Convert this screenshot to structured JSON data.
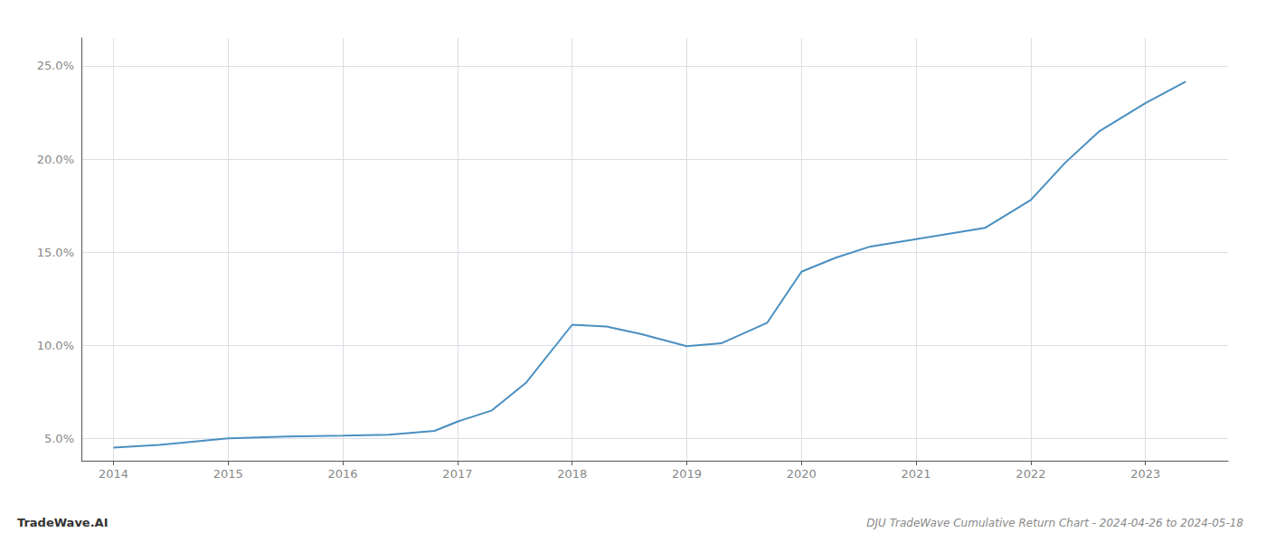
{
  "chart_data": {
    "type": "line",
    "title": "DJU TradeWave Cumulative Return Chart - 2024-04-26 to 2024-05-18",
    "annotations": [
      "TradeWave.AI"
    ],
    "x": [
      2014.0,
      2014.4,
      2015.0,
      2015.5,
      2016.0,
      2016.4,
      2016.8,
      2017.0,
      2017.3,
      2017.6,
      2018.0,
      2018.3,
      2018.6,
      2019.0,
      2019.3,
      2019.7,
      2020.0,
      2020.3,
      2020.6,
      2021.0,
      2021.3,
      2021.6,
      2022.0,
      2022.3,
      2022.6,
      2023.0,
      2023.35
    ],
    "values": [
      4.5,
      4.65,
      5.0,
      5.1,
      5.15,
      5.2,
      5.4,
      5.9,
      6.5,
      8.0,
      11.1,
      11.0,
      10.6,
      9.95,
      10.1,
      11.2,
      13.95,
      14.7,
      15.3,
      15.7,
      16.0,
      16.3,
      17.8,
      19.8,
      21.5,
      23.0,
      24.15
    ],
    "color": "#4a8fc0",
    "xlim": [
      2013.72,
      2023.72
    ],
    "xticks": [
      2014,
      2015,
      2016,
      2017,
      2018,
      2019,
      2020,
      2021,
      2022,
      2023
    ],
    "ylim": [
      3.8,
      26.5
    ],
    "yticks": [
      {
        "value": 5.0,
        "label": "5.0%"
      },
      {
        "value": 10.0,
        "label": "10.0%"
      },
      {
        "value": 15.0,
        "label": "15.0%"
      },
      {
        "value": 20.0,
        "label": "20.0%"
      },
      {
        "value": 25.0,
        "label": "25.0%"
      }
    ],
    "grid": true
  }
}
